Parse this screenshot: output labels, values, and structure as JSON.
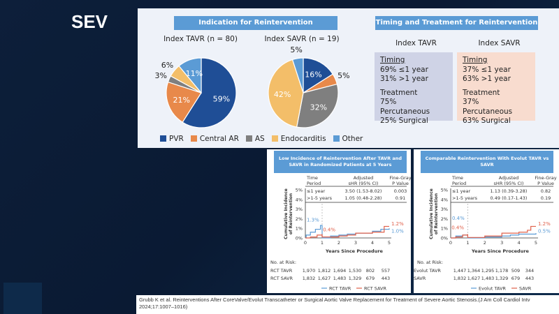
{
  "slide_title": "SEV",
  "indication": {
    "header": "Indication for Reintervention",
    "legend": [
      "PVR",
      "Central AR",
      "AS",
      "Endocarditis",
      "Other"
    ],
    "colors": [
      "#1f4e96",
      "#e8894a",
      "#7f7f7f",
      "#f3be69",
      "#5b9bd5"
    ],
    "pies": [
      {
        "title": "Index TAVR (n = 80)",
        "values": [
          59,
          21,
          3,
          6,
          11
        ],
        "labels": [
          "59%",
          "21%",
          "3%",
          "6%",
          "11%"
        ]
      },
      {
        "title": "Index SAVR (n = 19)",
        "values": [
          16,
          5,
          32,
          42,
          5
        ],
        "labels": [
          "16%",
          "5%",
          "32%",
          "42%",
          "5%"
        ]
      }
    ]
  },
  "timing": {
    "header": "Timing and Treatment for Reintervention",
    "cols": [
      {
        "title": "Index TAVR",
        "timing_label": "Timing",
        "t1": "69% ≤1 year",
        "t2": "31% >1 year",
        "treat_label": "Treatment",
        "r1": "75% Percutaneous",
        "r2": "25% Surgical",
        "color": "#cfd3e6"
      },
      {
        "title": "Index SAVR",
        "timing_label": "Timing",
        "t1": "37% ≤1 year",
        "t2": "63% >1 year",
        "treat_label": "Treatment",
        "r1": "37% Percutaneous",
        "r2": "63% Surgical",
        "color": "#f8dccf"
      }
    ]
  },
  "panels": [
    {
      "header": "Low Incidence of Reintervention After TAVR and SAVR in Randomized Patients at 5 Years",
      "table_headers": [
        "Time Period",
        "Adjusted sHR (95% CI)",
        "Fine-Gray P Value"
      ],
      "rows": [
        [
          "≤1 year",
          "3.50 (1.53-8.02)",
          "0.003"
        ],
        [
          ">1-5 years",
          "1.05 (0.48-2.28)",
          "0.91"
        ]
      ],
      "ylabel": "Cumulative Incidence of Reintervention",
      "xlabel": "Years Since Procedure",
      "yticks": [
        "0%",
        "1%",
        "2%",
        "3%",
        "4%",
        "5%"
      ],
      "xticks": [
        "0",
        "1",
        "2",
        "3",
        "4",
        "5"
      ],
      "annotations": {
        "tavr_1y": "1.3%",
        "savr_1y": "0.4%",
        "savr_5y": "1.2%",
        "tavr_5y": "1.0%"
      },
      "risk_title": "No. at Risk:",
      "risk": [
        [
          "RCT TAVR",
          "1,970",
          "1,812",
          "1,694",
          "1,530",
          "802",
          "557"
        ],
        [
          "RCT SAVR",
          "1,832",
          "1,627",
          "1,483",
          "1,329",
          "679",
          "443"
        ]
      ],
      "series": [
        {
          "name": "RCT TAVR",
          "color": "#5b9bd5",
          "x": [
            0,
            0.05,
            0.3,
            0.6,
            0.9,
            1,
            1,
            1.5,
            2,
            2.5,
            3,
            4,
            4.5,
            5
          ],
          "y": [
            0,
            0.3,
            0.6,
            0.9,
            1.3,
            1.3,
            0,
            0.2,
            0.3,
            0.4,
            0.5,
            0.7,
            0.9,
            1.0
          ]
        },
        {
          "name": "RCT SAVR",
          "color": "#e0604a",
          "x": [
            0,
            0.3,
            0.7,
            1,
            1,
            2,
            2.5,
            3,
            4,
            4.7,
            5
          ],
          "y": [
            0,
            0.1,
            0.3,
            0.4,
            0.1,
            0.2,
            0.3,
            0.5,
            0.6,
            1.2,
            1.2
          ]
        }
      ]
    },
    {
      "header": "Comparable Reintervention With Evolut TAVR vs SAVR",
      "table_headers": [
        "Time Period",
        "Adjusted sHR (95% CI)",
        "Fine-Gray P Value"
      ],
      "rows": [
        [
          "≤1 year",
          "1.13 (0.39-3.28)",
          "0.82"
        ],
        [
          ">1-5 years",
          "0.49 (0.17-1.43)",
          "0.19"
        ]
      ],
      "ylabel": "Cumulative Incidence of Reintervention",
      "xlabel": "Years Since Procedure",
      "yticks": [
        "0%",
        "1%",
        "2%",
        "3%",
        "4%",
        "5%"
      ],
      "xticks": [
        "0",
        "1",
        "2",
        "3",
        "4",
        "5"
      ],
      "annotations": {
        "tavr_1y": "0.4%",
        "savr_1y": "0.4%",
        "savr_5y": "1.2%",
        "tavr_5y": "0.5%"
      },
      "risk_title": "No. at Risk:",
      "risk": [
        [
          "Evolut TAVR",
          "1,447",
          "1,364",
          "1,295",
          "1,178",
          "509",
          "344"
        ],
        [
          "SAVR",
          "1,832",
          "1,627",
          "1,483",
          "1,329",
          "679",
          "443"
        ]
      ],
      "series": [
        {
          "name": "Evolut TAVR",
          "color": "#5b9bd5",
          "x": [
            0,
            0.3,
            0.7,
            1,
            1,
            2,
            3,
            3.5,
            4,
            5
          ],
          "y": [
            0,
            0.2,
            0.3,
            0.4,
            0,
            0.1,
            0.2,
            0.3,
            0.4,
            0.5
          ]
        },
        {
          "name": "SAVR",
          "color": "#e0604a",
          "x": [
            0,
            0.3,
            0.7,
            1,
            1,
            2,
            3,
            4,
            4.5,
            4.7,
            5
          ],
          "y": [
            0,
            0.1,
            0.3,
            0.4,
            0.05,
            0.2,
            0.5,
            0.6,
            0.8,
            1.2,
            1.2
          ]
        }
      ]
    }
  ],
  "citation": "Grubb K et al. Reinterventions After CoreValve/Evolut Transcatheter or Surgical Aortic Valve Replacement for Treatment of Severe Aortic Stenosis.(J Am Coll Cardiol Intv 2024;17:1007–1016)"
}
